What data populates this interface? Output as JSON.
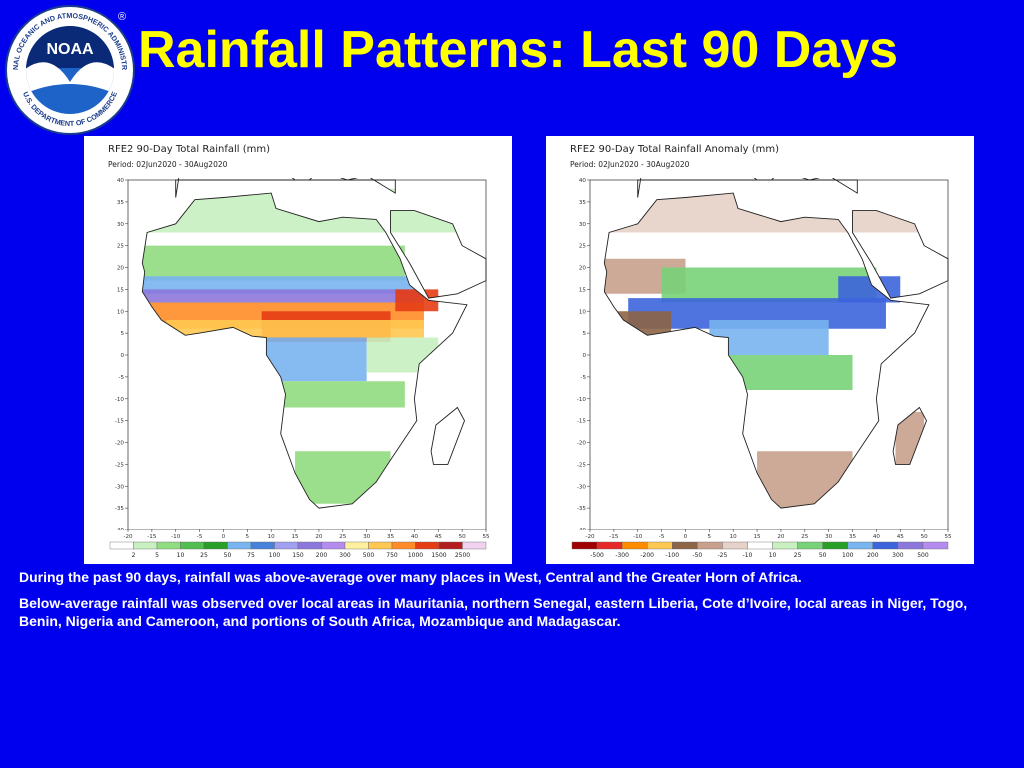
{
  "header": {
    "title": "Rainfall Patterns: Last 90 Days",
    "logo": {
      "ring_top": "NATIONAL OCEANIC AND ATMOSPHERIC ADMINISTRATION",
      "ring_bottom": "U.S. DEPARTMENT OF COMMERCE",
      "center": "NOAA",
      "registered": "®"
    }
  },
  "maps": [
    {
      "title": "RFE2 90-Day Total Rainfall (mm)",
      "period": "Period: 02Jun2020 - 30Aug2020",
      "lat_ticks": [
        "40",
        "35",
        "30",
        "25",
        "20",
        "15",
        "10",
        "5",
        "0",
        "-5",
        "-10",
        "-15",
        "-20",
        "-25",
        "-30",
        "-35",
        "-40"
      ],
      "lon_ticks": [
        "-20",
        "-15",
        "-10",
        "-5",
        "0",
        "5",
        "10",
        "15",
        "20",
        "25",
        "30",
        "35",
        "40",
        "45",
        "50",
        "55"
      ],
      "legend_values": [
        "2",
        "5",
        "10",
        "25",
        "50",
        "75",
        "100",
        "150",
        "200",
        "300",
        "500",
        "750",
        "1000",
        "1500",
        "2500"
      ],
      "legend_colors": [
        "#ffffff",
        "#c8f0c0",
        "#90dc80",
        "#50be50",
        "#28a028",
        "#78b4f0",
        "#4682dc",
        "#a0a0f0",
        "#8c78dc",
        "#b48cf0",
        "#fff0a0",
        "#ffc850",
        "#ff8c28",
        "#e63c14",
        "#b41e1e",
        "#f0d2f0"
      ]
    },
    {
      "title": "RFE2 90-Day Total Rainfall Anomaly (mm)",
      "period": "Period: 02Jun2020 - 30Aug2020",
      "lat_ticks": [
        "40",
        "35",
        "30",
        "25",
        "20",
        "15",
        "10",
        "5",
        "0",
        "-5",
        "-10",
        "-15",
        "-20",
        "-25",
        "-30",
        "-35",
        "-40"
      ],
      "lon_ticks": [
        "-20",
        "-15",
        "-10",
        "-5",
        "0",
        "5",
        "10",
        "15",
        "20",
        "25",
        "30",
        "35",
        "40",
        "45",
        "50",
        "55"
      ],
      "legend_values": [
        "-500",
        "-300",
        "-200",
        "-100",
        "-50",
        "-25",
        "-10",
        "10",
        "25",
        "50",
        "100",
        "200",
        "300",
        "500"
      ],
      "legend_colors": [
        "#a00000",
        "#e62828",
        "#ff8c00",
        "#ffc850",
        "#8c6446",
        "#c8a08c",
        "#e6d2c8",
        "#ffffff",
        "#c8f0c0",
        "#78d278",
        "#28a028",
        "#78b4f0",
        "#3c64dc",
        "#8c78dc",
        "#b48cf0"
      ]
    }
  ],
  "notes": [
    "During the past 90 days, rainfall was above-average over many places in West, Central and  the Greater Horn of Africa.",
    "Below-average rainfall was observed over local areas in Mauritania, northern Senegal, eastern Liberia, Cote d’Ivoire, local areas in Niger, Togo, Benin, Nigeria and Cameroon, and portions of South Africa, Mozambique and Madagascar."
  ]
}
